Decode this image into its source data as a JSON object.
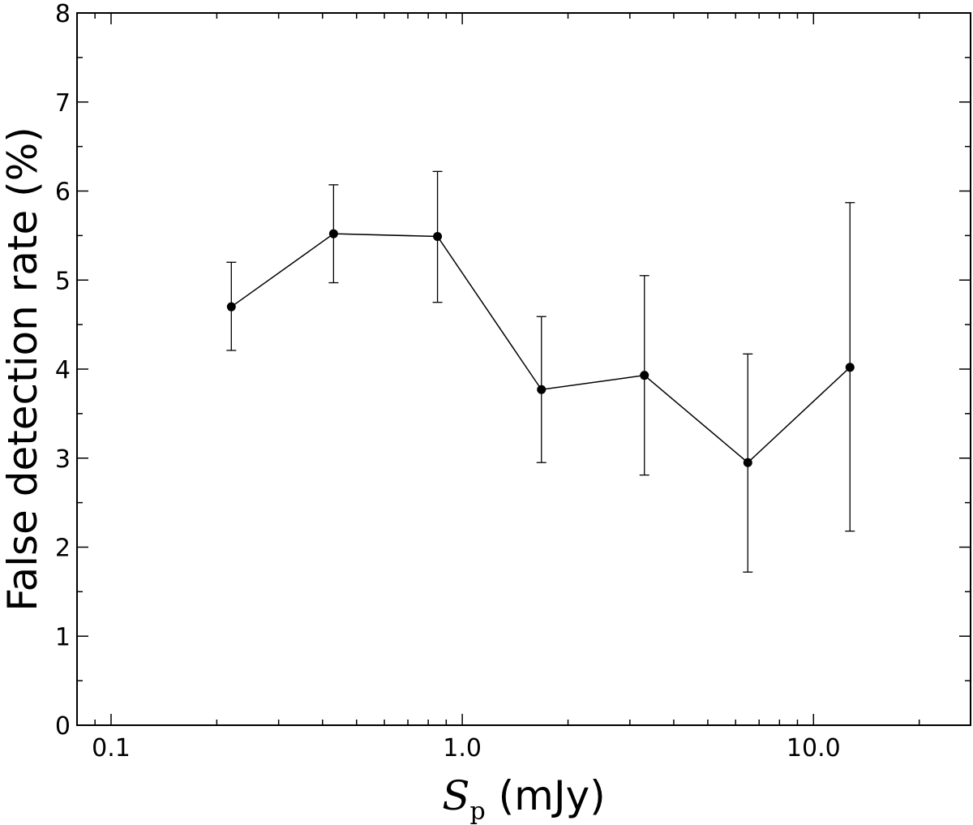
{
  "chart_data": {
    "type": "line",
    "xscale": "log",
    "xlim": [
      0.08,
      28
    ],
    "ylim": [
      0,
      8
    ],
    "xticks": [
      {
        "value": 0.1,
        "label": "0.1"
      },
      {
        "value": 1.0,
        "label": "1.0"
      },
      {
        "value": 10.0,
        "label": "10.0"
      }
    ],
    "yticks": [
      {
        "value": 0,
        "label": "0"
      },
      {
        "value": 1,
        "label": "1"
      },
      {
        "value": 2,
        "label": "2"
      },
      {
        "value": 3,
        "label": "3"
      },
      {
        "value": 4,
        "label": "4"
      },
      {
        "value": 5,
        "label": "5"
      },
      {
        "value": 6,
        "label": "6"
      },
      {
        "value": 7,
        "label": "7"
      },
      {
        "value": 8,
        "label": "8"
      }
    ],
    "xlabel": {
      "symbol": "S",
      "subscript": "p",
      "unit": " (mJy)"
    },
    "ylabel": "False detection rate (%)",
    "grid": false,
    "series": [
      {
        "color": "#000000",
        "points": [
          {
            "x": 0.22,
            "y": 4.7,
            "yerr_low": 4.21,
            "yerr_high": 5.2
          },
          {
            "x": 0.43,
            "y": 5.52,
            "yerr_low": 4.97,
            "yerr_high": 6.07
          },
          {
            "x": 0.85,
            "y": 5.49,
            "yerr_low": 4.75,
            "yerr_high": 6.22
          },
          {
            "x": 1.68,
            "y": 3.77,
            "yerr_low": 2.95,
            "yerr_high": 4.59
          },
          {
            "x": 3.3,
            "y": 3.93,
            "yerr_low": 2.81,
            "yerr_high": 5.05
          },
          {
            "x": 6.5,
            "y": 2.95,
            "yerr_low": 1.72,
            "yerr_high": 4.17
          },
          {
            "x": 12.7,
            "y": 4.02,
            "yerr_low": 2.18,
            "yerr_high": 5.87
          }
        ]
      }
    ]
  }
}
